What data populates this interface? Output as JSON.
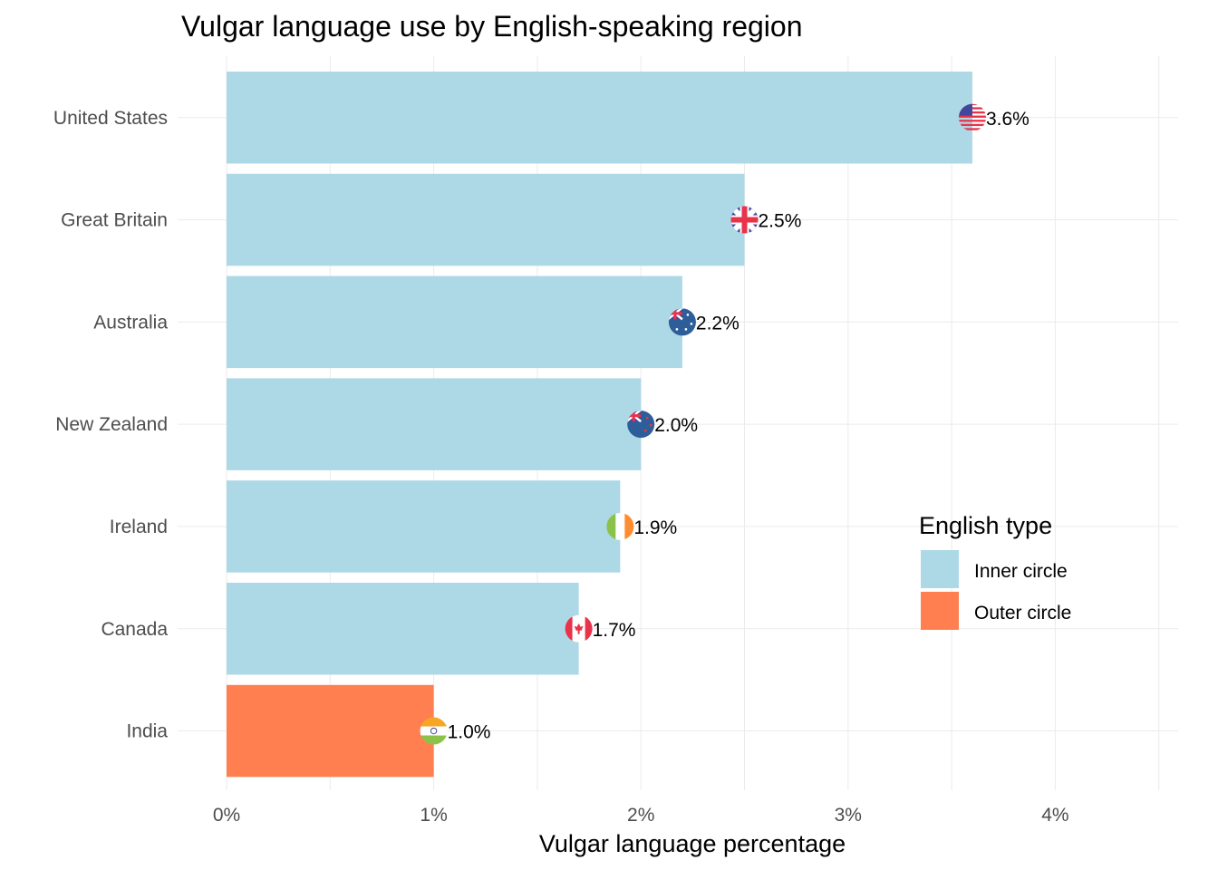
{
  "chart_data": {
    "type": "bar",
    "orientation": "horizontal",
    "title": "Vulgar language use by English-speaking region",
    "xlabel": "Vulgar language percentage",
    "ylabel": "",
    "xlim": [
      0,
      4.5
    ],
    "x_ticks": [
      0,
      1,
      2,
      3,
      4
    ],
    "x_tick_labels": [
      "0%",
      "1%",
      "2%",
      "3%",
      "4%"
    ],
    "grid": true,
    "categories": [
      "United States",
      "Great Britain",
      "Australia",
      "New Zealand",
      "Ireland",
      "Canada",
      "India"
    ],
    "values": [
      3.6,
      2.5,
      2.2,
      2.0,
      1.9,
      1.7,
      1.0
    ],
    "value_labels": [
      "3.6%",
      "2.5%",
      "2.2%",
      "2.0%",
      "1.9%",
      "1.7%",
      "1.0%"
    ],
    "groups": [
      "Inner circle",
      "Inner circle",
      "Inner circle",
      "Inner circle",
      "Inner circle",
      "Inner circle",
      "Outer circle"
    ],
    "flags": [
      "us-flag-icon",
      "gb-flag-icon",
      "au-flag-icon",
      "nz-flag-icon",
      "ie-flag-icon",
      "ca-flag-icon",
      "in-flag-icon"
    ],
    "legend": {
      "title": "English type",
      "position": "right",
      "entries": [
        {
          "label": "Inner circle",
          "color": "#add8e6"
        },
        {
          "label": "Outer circle",
          "color": "#ff7f50"
        }
      ]
    }
  }
}
